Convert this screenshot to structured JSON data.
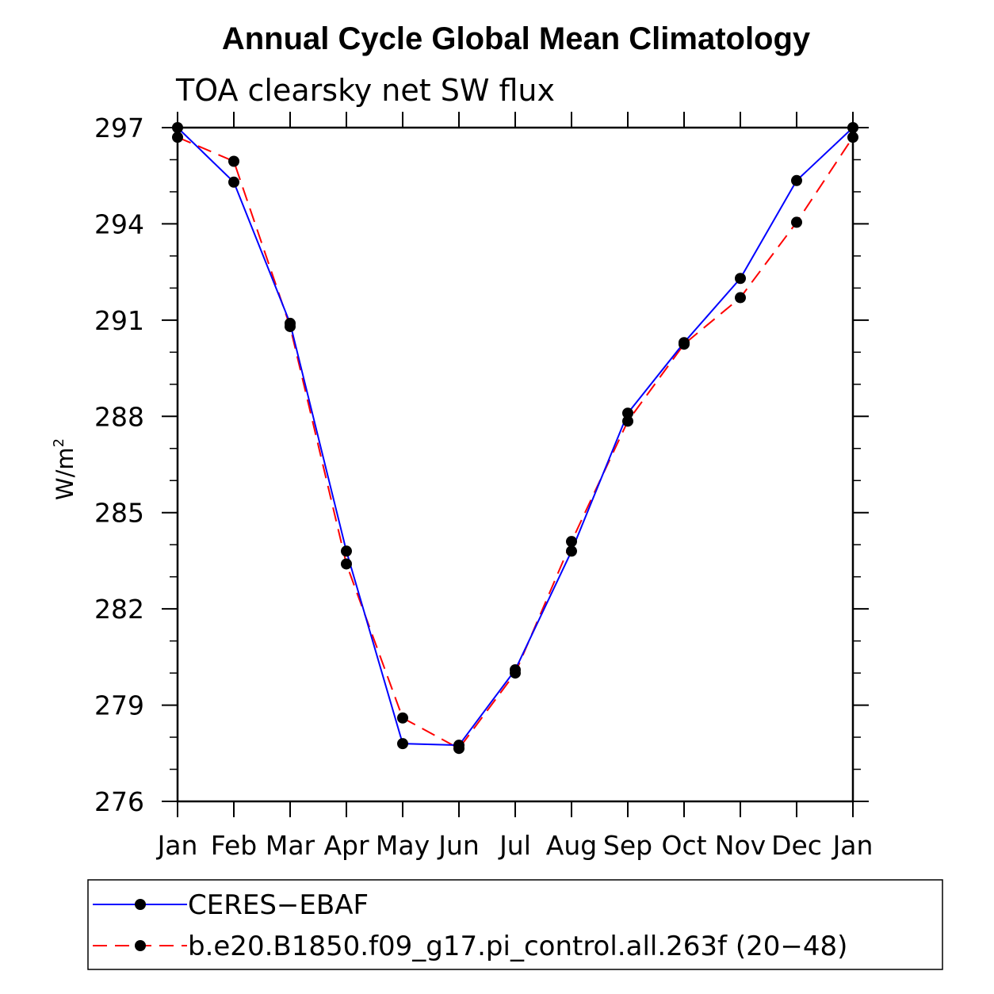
{
  "chart_data": {
    "type": "line",
    "title": "Annual Cycle Global Mean Climatology",
    "subtitle": "TOA clearsky net SW flux",
    "xlabel": "",
    "ylabel_base": "W/m",
    "ylabel_sup": "2",
    "categories": [
      "Jan",
      "Feb",
      "Mar",
      "Apr",
      "May",
      "Jun",
      "Jul",
      "Aug",
      "Sep",
      "Oct",
      "Nov",
      "Dec",
      "Jan"
    ],
    "ylim": [
      276,
      297
    ],
    "yticks": [
      276,
      279,
      282,
      285,
      288,
      291,
      294,
      297
    ],
    "series": [
      {
        "name": "CERES−EBAF",
        "color": "#0000ff",
        "dashed": false,
        "values": [
          297.0,
          295.3,
          290.9,
          283.8,
          277.8,
          277.75,
          280.1,
          283.8,
          288.1,
          290.3,
          292.3,
          295.35,
          297.0
        ]
      },
      {
        "name": "b.e20.B1850.f09_g17.pi_control.all.263f (20−48)",
        "color": "#ff0000",
        "dashed": true,
        "values": [
          296.7,
          295.95,
          290.8,
          283.4,
          278.6,
          277.65,
          280.0,
          284.1,
          287.85,
          290.25,
          291.7,
          294.05,
          296.7
        ]
      }
    ]
  }
}
